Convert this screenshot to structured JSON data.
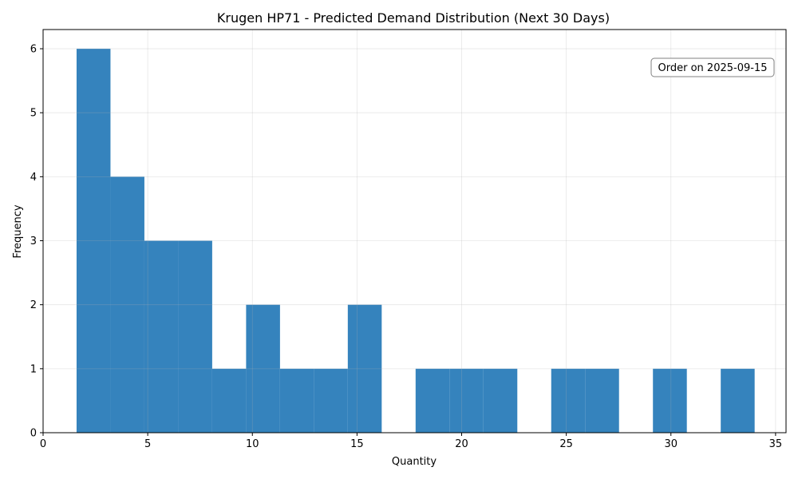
{
  "chart_data": {
    "type": "bar",
    "title": "Krugen HP71 - Predicted Demand Distribution (Next 30 Days)",
    "xlabel": "Quantity",
    "ylabel": "Frequency",
    "xlim": [
      0,
      35.5
    ],
    "ylim": [
      0,
      6.3
    ],
    "xticks": [
      0,
      5,
      10,
      15,
      20,
      25,
      30,
      35
    ],
    "yticks": [
      0,
      1,
      2,
      3,
      4,
      5,
      6
    ],
    "grid": true,
    "bar_color": "#3583bd",
    "bins": [
      {
        "x0": 1.6,
        "x1": 3.22,
        "count": 6
      },
      {
        "x0": 3.22,
        "x1": 4.84,
        "count": 4
      },
      {
        "x0": 4.84,
        "x1": 6.46,
        "count": 3
      },
      {
        "x0": 6.46,
        "x1": 8.08,
        "count": 3
      },
      {
        "x0": 8.08,
        "x1": 9.7,
        "count": 1
      },
      {
        "x0": 9.7,
        "x1": 11.32,
        "count": 2
      },
      {
        "x0": 11.32,
        "x1": 12.94,
        "count": 1
      },
      {
        "x0": 12.94,
        "x1": 14.56,
        "count": 1
      },
      {
        "x0": 14.56,
        "x1": 16.18,
        "count": 2
      },
      {
        "x0": 16.18,
        "x1": 17.8,
        "count": 0
      },
      {
        "x0": 17.8,
        "x1": 19.42,
        "count": 1
      },
      {
        "x0": 19.42,
        "x1": 21.04,
        "count": 1
      },
      {
        "x0": 21.04,
        "x1": 22.66,
        "count": 1
      },
      {
        "x0": 22.66,
        "x1": 24.28,
        "count": 0
      },
      {
        "x0": 24.28,
        "x1": 25.9,
        "count": 1
      },
      {
        "x0": 25.9,
        "x1": 27.52,
        "count": 1
      },
      {
        "x0": 27.52,
        "x1": 29.14,
        "count": 0
      },
      {
        "x0": 29.14,
        "x1": 30.76,
        "count": 1
      },
      {
        "x0": 30.76,
        "x1": 32.38,
        "count": 0
      },
      {
        "x0": 32.38,
        "x1": 34.0,
        "count": 1
      }
    ],
    "annotation": {
      "text": "Order on 2025-09-15",
      "placement": "top-right"
    }
  }
}
